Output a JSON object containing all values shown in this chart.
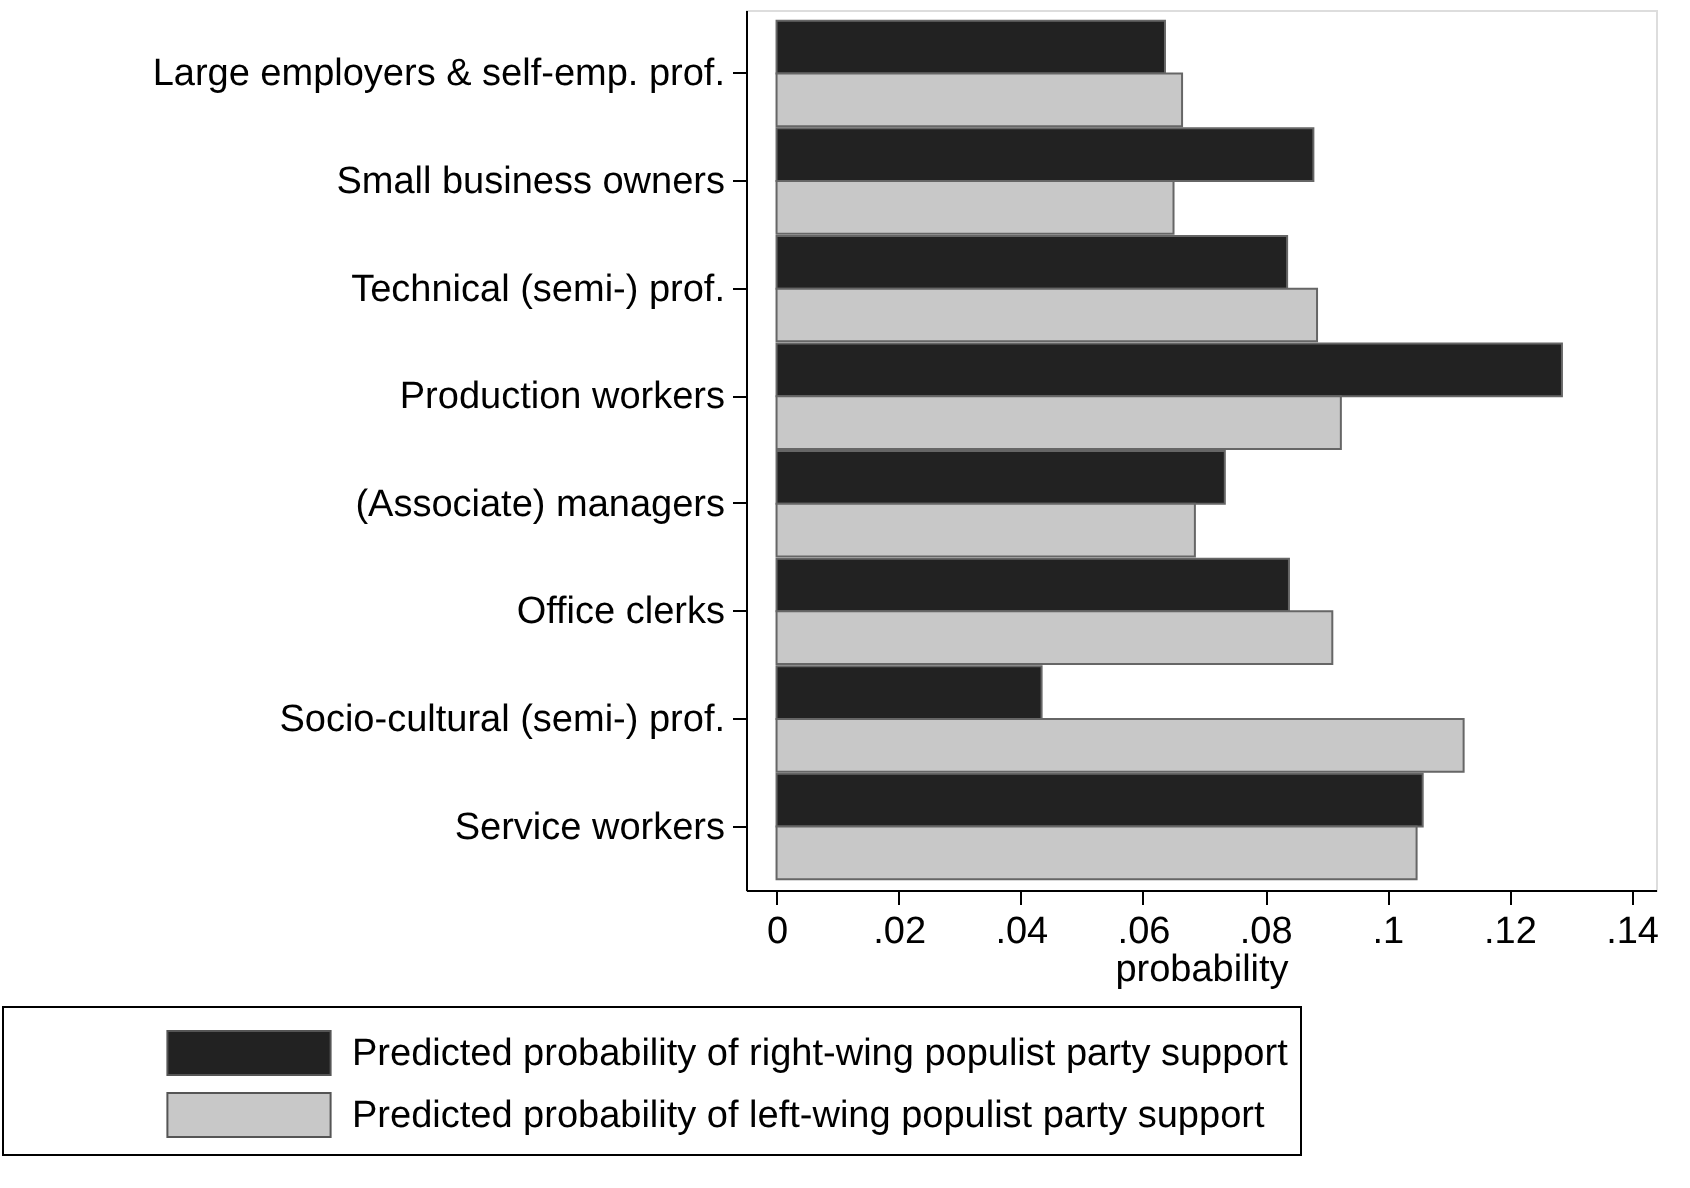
{
  "chart_data": {
    "type": "bar",
    "orientation": "horizontal",
    "xlabel": "probability",
    "categories": [
      "Large employers & self-emp. prof.",
      "Small business owners",
      "Technical (semi-) prof.",
      "Production workers",
      "(Associate) managers",
      "Office clerks",
      "Socio-cultural (semi-) prof.",
      "Service workers"
    ],
    "series": [
      {
        "name": "Predicted probability of right-wing populist party support",
        "color": "#222222",
        "values": [
          0.0636,
          0.0879,
          0.0836,
          0.1286,
          0.0734,
          0.0839,
          0.0434,
          0.1058
        ]
      },
      {
        "name": "Predicted probability of left-wing populist party support",
        "color": "#c8c8c8",
        "values": [
          0.0664,
          0.065,
          0.0885,
          0.0924,
          0.0685,
          0.091,
          0.1125,
          0.1048
        ]
      }
    ],
    "xlim": [
      -0.005,
      0.144
    ],
    "xticks": [
      0,
      {
        "value": 0.02,
        "label": ".02"
      },
      {
        "value": 0.04,
        "label": ".04"
      },
      {
        "value": 0.06,
        "label": ".06"
      },
      {
        "value": 0.08,
        "label": ".08"
      },
      {
        "value": 0.1,
        "label": ".1"
      },
      {
        "value": 0.12,
        "label": ".12"
      },
      {
        "value": 0.14,
        "label": ".14"
      }
    ],
    "grid": false,
    "legend": "bottom"
  }
}
